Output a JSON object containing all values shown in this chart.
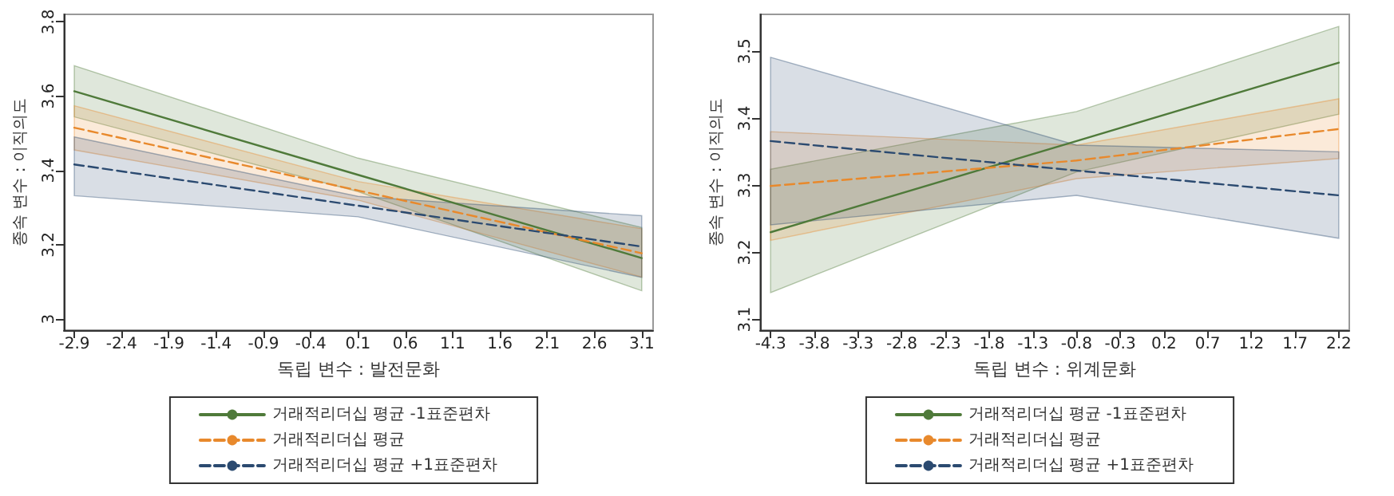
{
  "chart_data": [
    {
      "type": "line",
      "xlabel": "독립 변수 : 발전문화",
      "ylabel": "종속 변수 : 이직의도",
      "xlim": [
        -3.01,
        3.22
      ],
      "ylim": [
        2.97,
        3.82
      ],
      "xticks": [
        -2.9,
        -2.4,
        -1.9,
        -1.4,
        -0.9,
        -0.4,
        0.1,
        0.6,
        1.1,
        1.6,
        2.1,
        2.6,
        3.1
      ],
      "yticks": [
        3,
        3.2,
        3.4,
        3.6,
        3.8
      ],
      "grid": false,
      "legend": "bottom",
      "marker": "none",
      "x": [
        -2.9,
        0.1,
        3.1
      ],
      "series": [
        {
          "name": "거래적리더십 평균 -1표준편차",
          "color": "#4f7a3a",
          "line_style": "solid",
          "values": [
            3.613,
            3.388,
            3.164
          ],
          "lower": [
            3.544,
            3.343,
            3.076
          ],
          "upper": [
            3.682,
            3.433,
            3.246
          ]
        },
        {
          "name": "거래적리더십 평균",
          "color": "#e8892c",
          "line_style": "dashed",
          "values": [
            3.515,
            3.346,
            3.177
          ],
          "lower": [
            3.455,
            3.32,
            3.113
          ],
          "upper": [
            3.574,
            3.37,
            3.243
          ]
        },
        {
          "name": "거래적리더십 평균 +1표준편차",
          "color": "#2b4a70",
          "line_style": "dashed",
          "values": [
            3.416,
            3.305,
            3.195
          ],
          "lower": [
            3.332,
            3.275,
            3.112
          ],
          "upper": [
            3.49,
            3.33,
            3.278
          ]
        }
      ]
    },
    {
      "type": "line",
      "xlabel": "독립 변수 : 위계문화",
      "ylabel": "종속 변수 : 이직의도",
      "xlim": [
        -4.42,
        2.32
      ],
      "ylim": [
        3.084,
        3.555
      ],
      "xticks": [
        -4.3,
        -3.8,
        -3.3,
        -2.8,
        -2.3,
        -1.8,
        -1.3,
        -0.8,
        -0.3,
        0.2,
        0.7,
        1.2,
        1.7,
        2.2
      ],
      "yticks": [
        3.1,
        3.2,
        3.3,
        3.4,
        3.5
      ],
      "grid": false,
      "legend": "bottom",
      "marker": "none",
      "x": [
        -4.3,
        -0.8,
        2.2
      ],
      "series": [
        {
          "name": "거래적리더십 평균 -1표준편차",
          "color": "#4f7a3a",
          "line_style": "solid",
          "values": [
            3.23,
            3.366,
            3.483
          ],
          "lower": [
            3.14,
            3.32,
            3.406
          ],
          "upper": [
            3.324,
            3.41,
            3.537
          ]
        },
        {
          "name": "거래적리더십 평균",
          "color": "#e8892c",
          "line_style": "dashed",
          "values": [
            3.299,
            3.337,
            3.384
          ],
          "lower": [
            3.218,
            3.31,
            3.34
          ],
          "upper": [
            3.38,
            3.36,
            3.429
          ]
        },
        {
          "name": "거래적리더십 평균 +1표준편차",
          "color": "#2b4a70",
          "line_style": "dashed",
          "values": [
            3.366,
            3.322,
            3.285
          ],
          "lower": [
            3.241,
            3.285,
            3.221
          ],
          "upper": [
            3.491,
            3.36,
            3.35
          ]
        }
      ]
    }
  ]
}
